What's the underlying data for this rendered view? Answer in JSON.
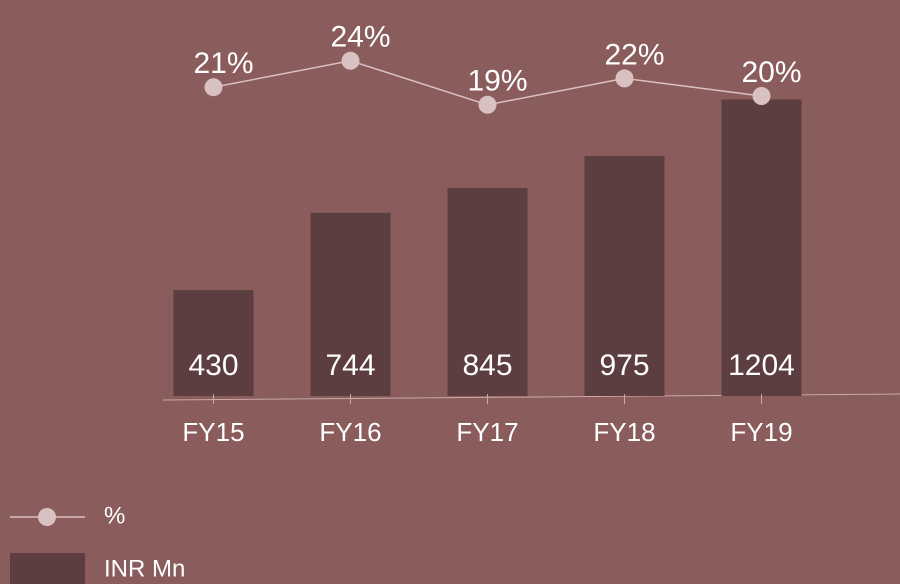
{
  "chart_data": {
    "type": "bar",
    "categories": [
      "FY15",
      "FY16",
      "FY17",
      "FY18",
      "FY19"
    ],
    "series": [
      {
        "name": "%",
        "type": "line",
        "axis": "y2",
        "color": "#d9c1c2",
        "values": [
          21,
          24,
          19,
          22,
          20
        ],
        "value_labels": [
          "21%",
          "24%",
          "19%",
          "22%",
          "20%"
        ]
      },
      {
        "name": "INR Mn",
        "type": "bar",
        "color": "#5c3e40",
        "values": [
          430,
          744,
          845,
          975,
          1204
        ]
      }
    ],
    "ylim": [
      0,
      1600
    ],
    "y2lim": [
      0,
      30
    ],
    "grid": false,
    "legend": "bottom-left"
  }
}
